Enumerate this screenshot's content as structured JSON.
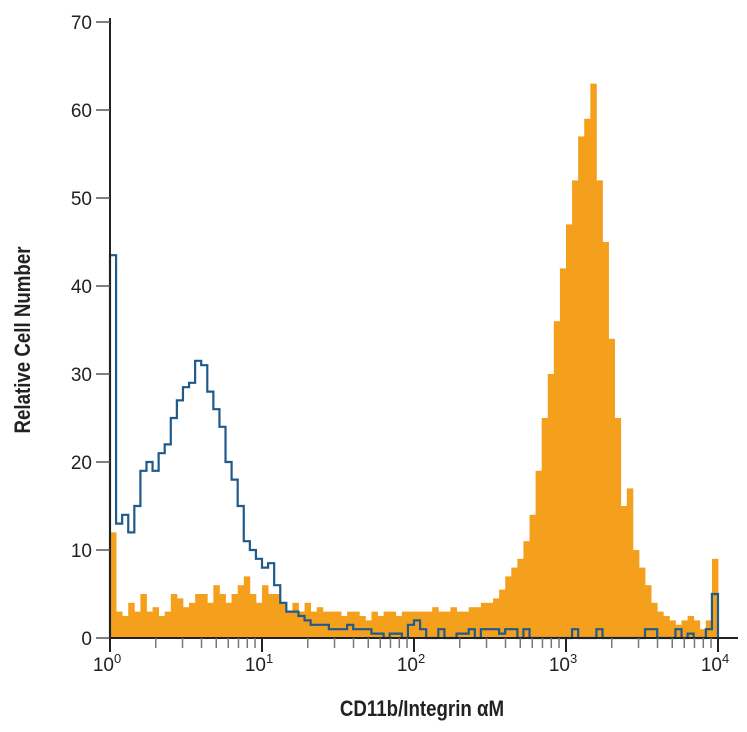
{
  "chart_data": {
    "type": "histogram",
    "title": "",
    "xlabel": "CD11b/Integrin αM",
    "ylabel": "Relative Cell Number",
    "x_scale": "log",
    "xlim": [
      1,
      10000
    ],
    "ylim": [
      0,
      70
    ],
    "x_ticks": [
      {
        "base": "10",
        "exp": "0"
      },
      {
        "base": "10",
        "exp": "1"
      },
      {
        "base": "10",
        "exp": "2"
      },
      {
        "base": "10",
        "exp": "3"
      },
      {
        "base": "10",
        "exp": "4"
      }
    ],
    "y_ticks": [
      "0",
      "10",
      "20",
      "30",
      "40",
      "50",
      "60",
      "70"
    ],
    "grid": false,
    "legend": "none",
    "bin_log10_step": 0.04,
    "series": [
      {
        "style": "filled",
        "color": "#f5a01d",
        "values": [
          12,
          3,
          2.5,
          4,
          3,
          5,
          3,
          3.5,
          2.5,
          3,
          5,
          4.5,
          3.5,
          4,
          5,
          5,
          4,
          6,
          5,
          4,
          5,
          6,
          7,
          5,
          4,
          6,
          5,
          5,
          4,
          3,
          4,
          3,
          4,
          3,
          3.5,
          3,
          3,
          3,
          2.5,
          3,
          3,
          2.5,
          2,
          3,
          2.5,
          3,
          3,
          2.5,
          3,
          3,
          3,
          3,
          3,
          3.5,
          3,
          3,
          3.5,
          3,
          3,
          3.5,
          3.5,
          4,
          4,
          4.5,
          5.5,
          7,
          8,
          9,
          11,
          14,
          19,
          25,
          30,
          36,
          42,
          47,
          52,
          57,
          59,
          63,
          52,
          45,
          34,
          25,
          15,
          17,
          10,
          8,
          6,
          4,
          3,
          2.5,
          2,
          1.5,
          2,
          2.5,
          2,
          1,
          2,
          9
        ]
      },
      {
        "style": "outline",
        "color": "#1f5a8a",
        "values": [
          43.5,
          13,
          14,
          12,
          15,
          19,
          20,
          19,
          21,
          22,
          25,
          27,
          28.5,
          29,
          31.5,
          31,
          28,
          26,
          24,
          20,
          18,
          15,
          11,
          10,
          9,
          8,
          8.5,
          6,
          4,
          3,
          3,
          2.5,
          2,
          1.5,
          1.5,
          1.5,
          1,
          1,
          1,
          1.5,
          1,
          1,
          1,
          0.5,
          0.5,
          0,
          0.5,
          0.5,
          0,
          1.5,
          2,
          1,
          0,
          0,
          1,
          0,
          0,
          0.5,
          0.5,
          1,
          0,
          1,
          1,
          1,
          0.5,
          1,
          1,
          0,
          1,
          0,
          0,
          0,
          0,
          0,
          0,
          0,
          1,
          0,
          0,
          0,
          1,
          0,
          0,
          0,
          0,
          0,
          0,
          0,
          1,
          1,
          0,
          0,
          0,
          1,
          0,
          0.5,
          0,
          0,
          1,
          5
        ]
      }
    ]
  }
}
